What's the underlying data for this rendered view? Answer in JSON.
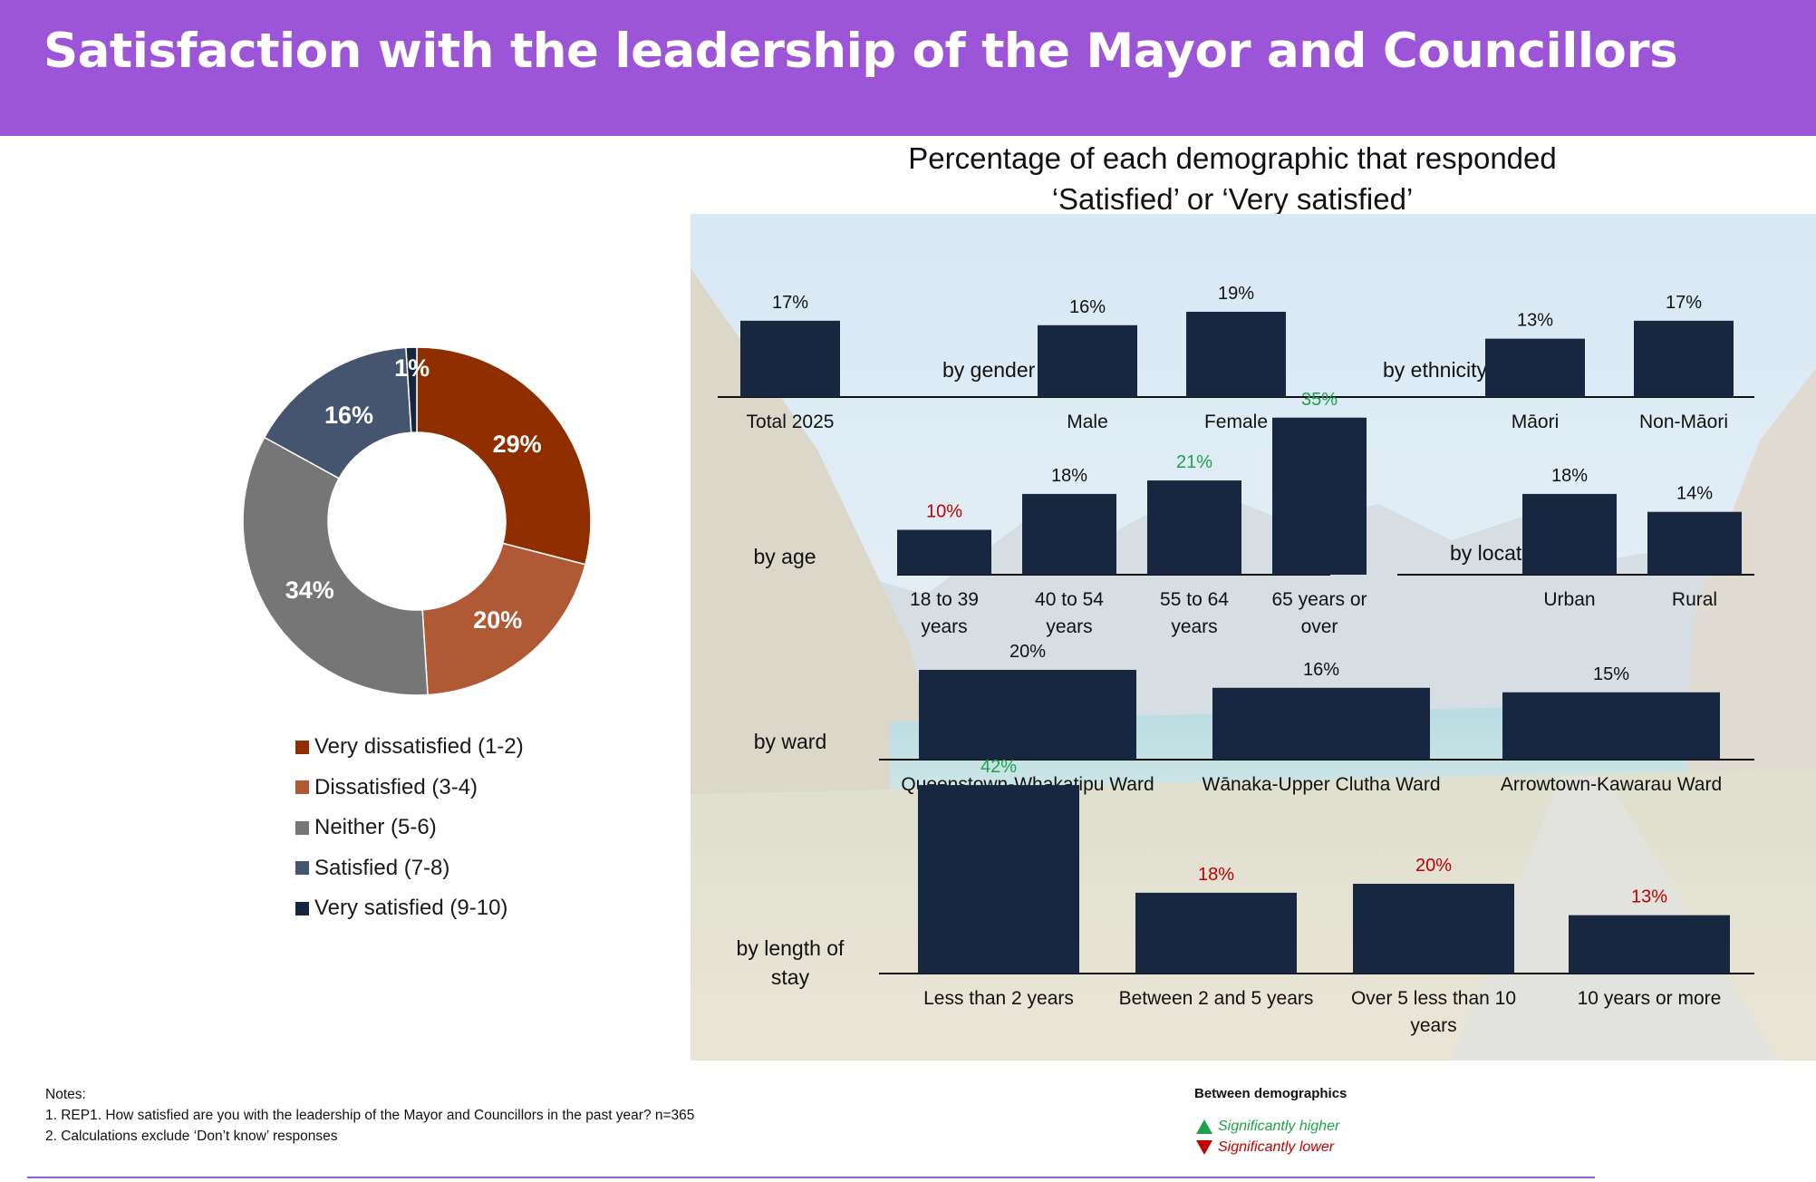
{
  "title": "Satisfaction with the leadership of the Mayor and Councillors",
  "chart_data": [
    {
      "type": "pie",
      "subtype": "donut",
      "categories": [
        "Very dissatisfied (1-2)",
        "Dissatisfied (3-4)",
        "Neither (5-6)",
        "Satisfied (7-8)",
        "Very satisfied (9-10)"
      ],
      "values": [
        29,
        20,
        34,
        16,
        1
      ],
      "labels": [
        "29%",
        "20%",
        "34%",
        "16%",
        "1%"
      ],
      "colors": [
        "#8f2f00",
        "#b05a35",
        "#767676",
        "#45546f",
        "#172640"
      ],
      "legend_position": "bottom"
    },
    {
      "type": "bar",
      "title": "Percentage of each demographic that responded ‘Satisfied’ or ‘Very satisfied’",
      "bar_color": "#17273f",
      "groups": [
        {
          "label": "",
          "categories": [
            "Total 2025"
          ],
          "values": [
            17
          ],
          "labels": [
            "17%"
          ],
          "significance": [
            "none"
          ]
        },
        {
          "label": "by gender",
          "categories": [
            "Male",
            "Female"
          ],
          "values": [
            16,
            19
          ],
          "labels": [
            "16%",
            "19%"
          ],
          "significance": [
            "none",
            "none"
          ]
        },
        {
          "label": "by ethnicity",
          "categories": [
            "Māori",
            "Non-Māori"
          ],
          "values": [
            13,
            17
          ],
          "labels": [
            "13%",
            "17%"
          ],
          "significance": [
            "none",
            "none"
          ]
        },
        {
          "label": "by age",
          "categories": [
            "18 to 39 years",
            "40 to 54 years",
            "55 to 64 years",
            "65 years or over"
          ],
          "values": [
            10,
            18,
            21,
            35
          ],
          "labels": [
            "10%",
            "18%",
            "21%",
            "35%"
          ],
          "significance": [
            "lower",
            "none",
            "higher",
            "higher"
          ]
        },
        {
          "label": "by location",
          "categories": [
            "Urban",
            "Rural"
          ],
          "values": [
            18,
            14
          ],
          "labels": [
            "18%",
            "14%"
          ],
          "significance": [
            "none",
            "none"
          ]
        },
        {
          "label": "by ward",
          "categories": [
            "Queenstown-Whakatipu Ward",
            "Wānaka-Upper Clutha Ward",
            "Arrowtown-Kawarau Ward"
          ],
          "values": [
            20,
            16,
            15
          ],
          "labels": [
            "20%",
            "16%",
            "15%"
          ],
          "significance": [
            "none",
            "none",
            "none"
          ]
        },
        {
          "label": "by length of stay",
          "categories": [
            "Less than 2 years",
            "Between 2 and 5 years",
            "Over 5 less than 10 years",
            "10 years or more"
          ],
          "values": [
            42,
            18,
            20,
            13
          ],
          "labels": [
            "42%",
            "18%",
            "20%",
            "13%"
          ],
          "significance": [
            "higher",
            "lower",
            "lower",
            "lower"
          ]
        }
      ]
    }
  ],
  "notes": {
    "heading": "Notes:",
    "line1": "1. REP1. How satisfied are you with the leadership of the Mayor and Councillors in the past year? n=365",
    "line2": "2. Calculations exclude ‘Don’t know’ responses"
  },
  "key": {
    "title": "Between demographics",
    "higher": "Significantly higher",
    "lower": "Significantly lower",
    "higher_color": "#1fa04a",
    "lower_color": "#c00000"
  }
}
